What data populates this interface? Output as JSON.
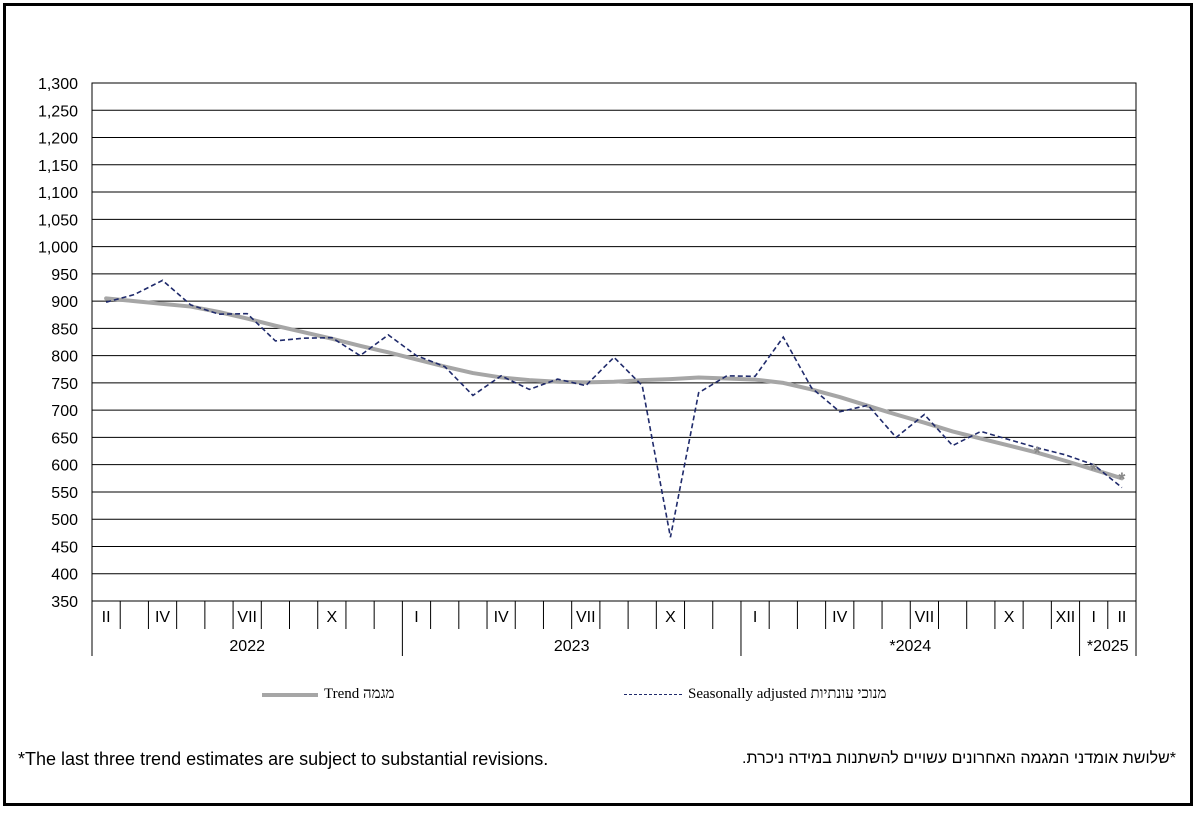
{
  "chart_data": {
    "type": "line",
    "ylim": [
      350,
      1300
    ],
    "yticks": [
      "1,300",
      "1,250",
      "1,200",
      "1,150",
      "1,100",
      "1,050",
      "1,000",
      "950",
      "900",
      "850",
      "800",
      "750",
      "700",
      "650",
      "600",
      "550",
      "500",
      "450",
      "400",
      "350"
    ],
    "grid": true,
    "month_labels": [
      "II",
      "",
      "IV",
      "",
      "",
      "VII",
      "",
      "",
      "X",
      "",
      "",
      "I",
      "",
      "",
      "IV",
      "",
      "",
      "VII",
      "",
      "",
      "X",
      "",
      "",
      "I",
      "",
      "",
      "IV",
      "",
      "",
      "VII",
      "",
      "",
      "X",
      "",
      "XII",
      "I",
      "II"
    ],
    "years": [
      {
        "label": "2022",
        "start": 0,
        "end": 10
      },
      {
        "label": "2023",
        "start": 11,
        "end": 22
      },
      {
        "label": "*2024",
        "start": 23,
        "end": 34
      },
      {
        "label": "*2025",
        "start": 35,
        "end": 36
      }
    ],
    "series": [
      {
        "name": "Trend מגמה",
        "color": "#a6a6a6",
        "style": "solid",
        "values": [
          905,
          900,
          895,
          890,
          880,
          868,
          855,
          843,
          831,
          818,
          806,
          793,
          780,
          768,
          760,
          755,
          752,
          751,
          752,
          755,
          757,
          760,
          758,
          756,
          750,
          738,
          724,
          708,
          692,
          677,
          661,
          648,
          635,
          622,
          607,
          591,
          575
        ]
      },
      {
        "name": "Seasonally adjusted מנוכי עונתיות",
        "color": "#1f2a6b",
        "style": "dashed",
        "values": [
          898,
          912,
          938,
          893,
          876,
          877,
          827,
          832,
          833,
          800,
          838,
          800,
          780,
          727,
          763,
          738,
          757,
          745,
          797,
          745,
          467,
          732,
          763,
          762,
          834,
          741,
          697,
          709,
          650,
          692,
          635,
          661,
          646,
          631,
          618,
          600,
          558
        ]
      }
    ],
    "estimate_points": [
      33,
      35,
      36
    ]
  },
  "legend": {
    "trend_label": "Trend מגמה",
    "sa_label": "Seasonally adjusted מנוכי עונתיות"
  },
  "footnotes": {
    "english": "*The last three trend estimates are subject to substantial revisions.",
    "hebrew": "*שלושת אומדני המגמה האחרונים עשויים להשתנות במידה ניכרת."
  }
}
